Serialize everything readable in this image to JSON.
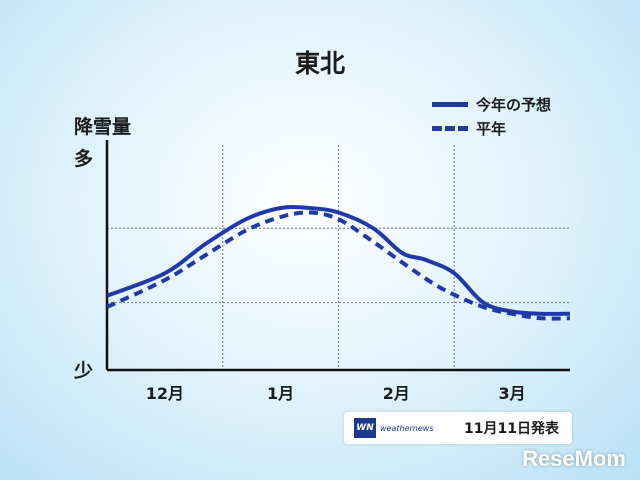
{
  "chart_data": {
    "type": "line",
    "title": "東北",
    "ylabel": "降雪量",
    "y_tick_labels": [
      "多",
      "少"
    ],
    "categories": [
      "12月",
      "1月",
      "2月",
      "3月"
    ],
    "xlim": [
      0,
      4
    ],
    "ylim": [
      0,
      100
    ],
    "grid": true,
    "legend_position": "top-right",
    "series": [
      {
        "name": "今年の予想",
        "style": "solid",
        "color": "#1f3aa8",
        "x": [
          0.0,
          0.5,
          0.85,
          1.2,
          1.5,
          1.75,
          2.0,
          2.3,
          2.55,
          2.75,
          3.0,
          3.25,
          3.5,
          3.75,
          4.0
        ],
        "y": [
          33,
          43,
          56,
          67,
          72,
          72,
          70,
          63,
          52,
          49,
          43,
          30,
          26,
          25,
          25
        ]
      },
      {
        "name": "平年",
        "style": "dashed",
        "color": "#1f3aa8",
        "x": [
          0.0,
          0.5,
          0.85,
          1.2,
          1.5,
          1.75,
          2.0,
          2.3,
          2.6,
          2.9,
          3.25,
          3.5,
          3.75,
          4.0
        ],
        "y": [
          28,
          40,
          51,
          62,
          68,
          70,
          67,
          57,
          46,
          36,
          28,
          25,
          23,
          23
        ]
      }
    ]
  },
  "source": {
    "logo_text": "WN",
    "brand": "weathernews",
    "date": "11月11日発表"
  },
  "watermark": "ReseMom"
}
